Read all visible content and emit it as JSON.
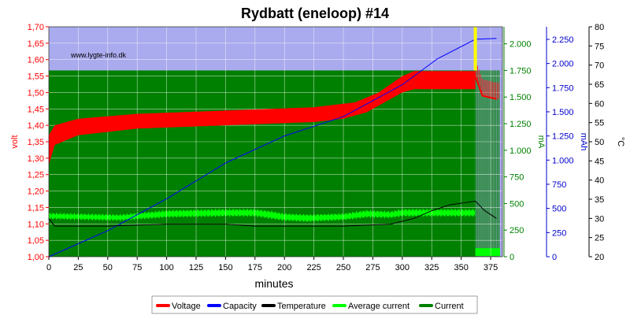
{
  "chart_data": {
    "type": "line",
    "title": "Rydbatt (eneloop) #14",
    "watermark": "www.lygte-info.dk",
    "xlabel": "minutes",
    "xlim": [
      0,
      385
    ],
    "x_ticks": [
      "0",
      "25",
      "50",
      "75",
      "100",
      "125",
      "150",
      "175",
      "200",
      "225",
      "250",
      "275",
      "300",
      "325",
      "350",
      "375"
    ],
    "axes": {
      "volt": {
        "label": "volt",
        "color": "#ff0000",
        "ylim": [
          1.0,
          1.7
        ],
        "ticks": [
          "1,00",
          "1,05",
          "1,10",
          "1,15",
          "1,20",
          "1,25",
          "1,30",
          "1,35",
          "1,40",
          "1,45",
          "1,50",
          "1,55",
          "1,60",
          "1,65",
          "1,70"
        ]
      },
      "mA": {
        "label": "mA",
        "color": "#008000",
        "ylim": [
          0,
          2160
        ],
        "ticks": [
          "0",
          "250",
          "500",
          "750",
          "1.000",
          "1.250",
          "1.500",
          "1.750",
          "2.000"
        ]
      },
      "mAh": {
        "label": "mAh",
        "color": "#0000cc",
        "ylim": [
          0,
          2380
        ],
        "ticks": [
          "0",
          "250",
          "500",
          "750",
          "1.000",
          "1.250",
          "1.500",
          "1.750",
          "2.000",
          "2.250"
        ]
      },
      "celsius": {
        "label": "°C",
        "color": "#000000",
        "ylim": [
          20,
          80
        ],
        "ticks": [
          "20",
          "25",
          "30",
          "35",
          "40",
          "45",
          "50",
          "55",
          "60",
          "65",
          "70",
          "75",
          "80"
        ]
      }
    },
    "colors": {
      "voltage": "#ff0000",
      "capacity": "#0000ff",
      "temperature": "#000000",
      "average_current": "#00ff00",
      "current": "#008000",
      "plot_background": "#aaaaee",
      "end_marker": "#ffff00"
    },
    "charge_current_mA": 1750,
    "end_marker_x": 362,
    "series": [
      {
        "name": "Voltage",
        "axis": "volt",
        "upper_band": [
          [
            0,
            1.37
          ],
          [
            5,
            1.4
          ],
          [
            25,
            1.42
          ],
          [
            75,
            1.435
          ],
          [
            150,
            1.445
          ],
          [
            225,
            1.455
          ],
          [
            260,
            1.47
          ],
          [
            280,
            1.5
          ],
          [
            300,
            1.55
          ],
          [
            310,
            1.565
          ],
          [
            362,
            1.565
          ]
        ],
        "lower_band": [
          [
            0,
            1.28
          ],
          [
            5,
            1.34
          ],
          [
            25,
            1.37
          ],
          [
            75,
            1.39
          ],
          [
            150,
            1.4
          ],
          [
            225,
            1.41
          ],
          [
            250,
            1.42
          ],
          [
            270,
            1.44
          ],
          [
            290,
            1.48
          ],
          [
            300,
            1.5
          ],
          [
            310,
            1.51
          ],
          [
            362,
            1.51
          ]
        ],
        "after_end": [
          [
            362,
            1.55
          ],
          [
            368,
            1.49
          ],
          [
            380,
            1.48
          ]
        ]
      },
      {
        "name": "Capacity",
        "axis": "mAh",
        "values": [
          [
            0,
            0
          ],
          [
            50,
            270
          ],
          [
            100,
            600
          ],
          [
            150,
            970
          ],
          [
            200,
            1250
          ],
          [
            250,
            1450
          ],
          [
            300,
            1780
          ],
          [
            330,
            2050
          ],
          [
            362,
            2250
          ],
          [
            380,
            2260
          ]
        ]
      },
      {
        "name": "Temperature",
        "axis": "celsius",
        "values": [
          [
            0,
            30
          ],
          [
            5,
            28
          ],
          [
            50,
            28
          ],
          [
            100,
            28.5
          ],
          [
            150,
            28.5
          ],
          [
            175,
            28
          ],
          [
            250,
            28
          ],
          [
            290,
            28.5
          ],
          [
            310,
            30
          ],
          [
            325,
            32
          ],
          [
            340,
            33.5
          ],
          [
            362,
            34.5
          ],
          [
            370,
            32
          ],
          [
            380,
            30
          ]
        ]
      },
      {
        "name": "Average current",
        "axis": "mA",
        "upper": [
          [
            0,
            405
          ],
          [
            60,
            390
          ],
          [
            100,
            430
          ],
          [
            150,
            440
          ],
          [
            175,
            440
          ],
          [
            190,
            420
          ],
          [
            200,
            400
          ],
          [
            220,
            390
          ],
          [
            250,
            400
          ],
          [
            270,
            430
          ],
          [
            290,
            420
          ],
          [
            300,
            440
          ],
          [
            362,
            440
          ]
        ],
        "lower": [
          [
            0,
            360
          ],
          [
            60,
            345
          ],
          [
            100,
            375
          ],
          [
            150,
            385
          ],
          [
            175,
            385
          ],
          [
            190,
            360
          ],
          [
            200,
            345
          ],
          [
            220,
            335
          ],
          [
            250,
            350
          ],
          [
            270,
            375
          ],
          [
            290,
            370
          ],
          [
            300,
            385
          ],
          [
            362,
            385
          ]
        ]
      },
      {
        "name": "Current",
        "axis": "mA",
        "charge_level": 1750,
        "after_end_low": 50
      }
    ]
  }
}
